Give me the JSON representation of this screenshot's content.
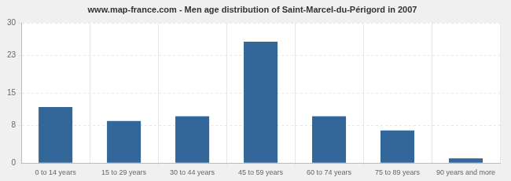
{
  "chart_data": {
    "type": "bar",
    "title": "www.map-france.com - Men age distribution of Saint-Marcel-du-Périgord in 2007",
    "categories": [
      "0 to 14 years",
      "15 to 29 years",
      "30 to 44 years",
      "45 to 59 years",
      "60 to 74 years",
      "75 to 89 years",
      "90 years and more"
    ],
    "values": [
      12,
      9,
      10,
      26,
      10,
      7,
      1
    ],
    "color": "#336699",
    "ylim": [
      0,
      30
    ],
    "yticks": [
      0,
      8,
      15,
      23,
      30
    ],
    "grid": true
  }
}
